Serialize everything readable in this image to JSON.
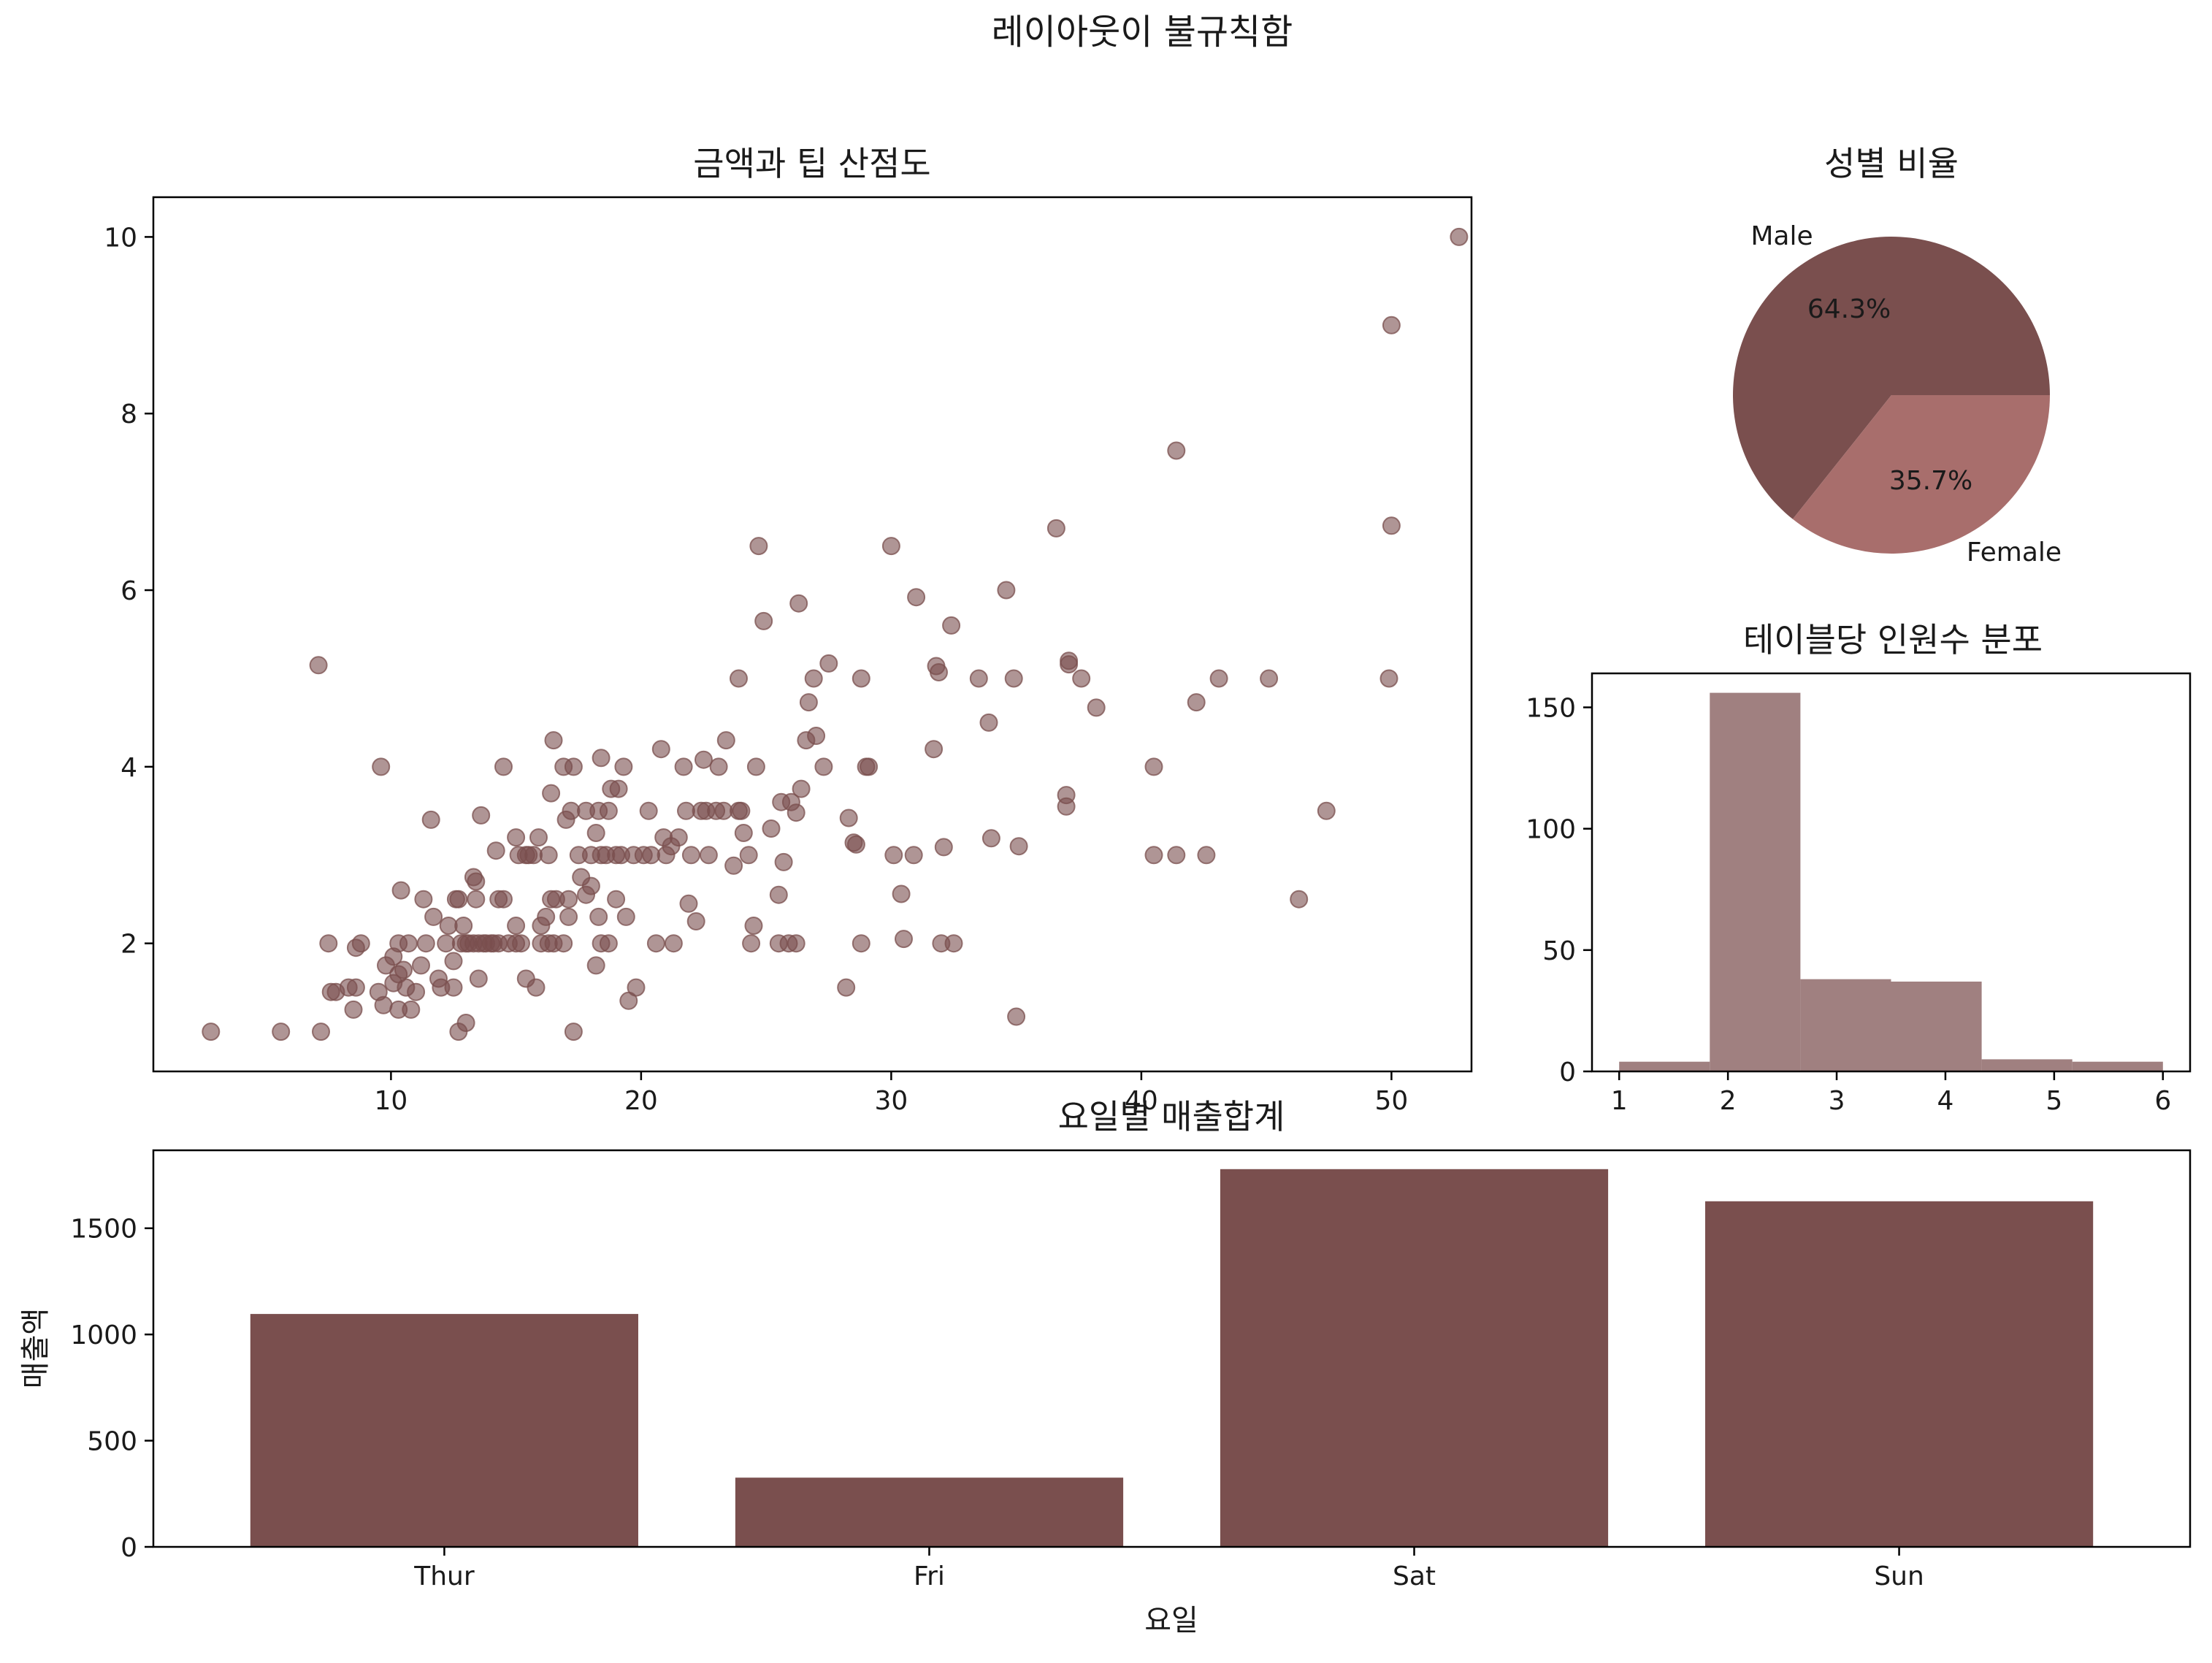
{
  "suptitle": "레이아웃이 불규칙함",
  "colors": {
    "dark": "#7a4f4e",
    "pink": "#a86e6c",
    "hist": "#a08080",
    "dot": "#7a4f4e"
  },
  "chart_data": [
    {
      "id": "scatter",
      "type": "scatter",
      "title": "금액과 팁 산점도",
      "xlabel": "",
      "ylabel": "",
      "xlim": [
        0.5,
        53.2
      ],
      "ylim": [
        0.55,
        10.45
      ],
      "xticks": [
        10,
        20,
        30,
        40,
        50
      ],
      "yticks": [
        2,
        4,
        6,
        8,
        10
      ],
      "points": [
        [
          2.8,
          1.0
        ],
        [
          5.6,
          1.0
        ],
        [
          7.2,
          1.0
        ],
        [
          7.1,
          5.15
        ],
        [
          7.5,
          2.0
        ],
        [
          7.6,
          1.45
        ],
        [
          7.8,
          1.45
        ],
        [
          8.3,
          1.5
        ],
        [
          8.5,
          1.25
        ],
        [
          8.6,
          1.95
        ],
        [
          8.6,
          1.5
        ],
        [
          8.8,
          2.0
        ],
        [
          9.5,
          1.45
        ],
        [
          9.6,
          4.0
        ],
        [
          9.7,
          1.3
        ],
        [
          9.8,
          1.75
        ],
        [
          10.1,
          1.55
        ],
        [
          10.1,
          1.85
        ],
        [
          10.3,
          2.0
        ],
        [
          10.3,
          1.25
        ],
        [
          10.3,
          1.65
        ],
        [
          10.4,
          2.6
        ],
        [
          10.5,
          1.7
        ],
        [
          10.6,
          1.5
        ],
        [
          10.7,
          2.0
        ],
        [
          10.8,
          1.25
        ],
        [
          11.0,
          1.45
        ],
        [
          11.2,
          1.75
        ],
        [
          11.3,
          2.5
        ],
        [
          11.4,
          2.0
        ],
        [
          11.6,
          3.4
        ],
        [
          11.7,
          2.3
        ],
        [
          11.9,
          1.6
        ],
        [
          12.0,
          1.5
        ],
        [
          12.2,
          2.0
        ],
        [
          12.3,
          2.2
        ],
        [
          12.5,
          1.5
        ],
        [
          12.5,
          1.8
        ],
        [
          12.6,
          2.5
        ],
        [
          12.7,
          1.0
        ],
        [
          12.7,
          2.5
        ],
        [
          12.8,
          2.0
        ],
        [
          12.9,
          2.2
        ],
        [
          13.0,
          1.1
        ],
        [
          13.0,
          2.0
        ],
        [
          13.1,
          2.0
        ],
        [
          13.3,
          2.75
        ],
        [
          13.3,
          2.0
        ],
        [
          13.4,
          2.5
        ],
        [
          13.4,
          2.7
        ],
        [
          13.5,
          2.0
        ],
        [
          13.5,
          1.6
        ],
        [
          13.6,
          3.45
        ],
        [
          13.7,
          2.0
        ],
        [
          13.8,
          2.0
        ],
        [
          14.0,
          2.0
        ],
        [
          14.1,
          2.0
        ],
        [
          14.2,
          3.05
        ],
        [
          14.3,
          2.0
        ],
        [
          14.3,
          2.5
        ],
        [
          14.5,
          4.0
        ],
        [
          14.5,
          2.5
        ],
        [
          14.7,
          2.0
        ],
        [
          15.0,
          2.0
        ],
        [
          15.0,
          3.2
        ],
        [
          15.0,
          2.2
        ],
        [
          15.1,
          3.0
        ],
        [
          15.2,
          2.0
        ],
        [
          15.4,
          3.0
        ],
        [
          15.4,
          1.6
        ],
        [
          15.5,
          3.0
        ],
        [
          15.7,
          3.0
        ],
        [
          15.8,
          1.5
        ],
        [
          15.9,
          3.2
        ],
        [
          16.0,
          2.2
        ],
        [
          16.0,
          2.0
        ],
        [
          16.2,
          2.3
        ],
        [
          16.3,
          2.0
        ],
        [
          16.3,
          3.0
        ],
        [
          16.4,
          2.5
        ],
        [
          16.4,
          3.7
        ],
        [
          16.5,
          4.3
        ],
        [
          16.5,
          2.0
        ],
        [
          16.6,
          2.5
        ],
        [
          16.9,
          2.0
        ],
        [
          16.9,
          4.0
        ],
        [
          17.0,
          3.4
        ],
        [
          17.1,
          2.5
        ],
        [
          17.1,
          2.3
        ],
        [
          17.2,
          3.5
        ],
        [
          17.3,
          4.0
        ],
        [
          17.3,
          1.0
        ],
        [
          17.5,
          3.0
        ],
        [
          17.6,
          2.75
        ],
        [
          17.8,
          3.5
        ],
        [
          17.8,
          2.55
        ],
        [
          18.0,
          3.0
        ],
        [
          18.0,
          2.65
        ],
        [
          18.2,
          3.25
        ],
        [
          18.2,
          1.75
        ],
        [
          18.3,
          2.3
        ],
        [
          18.3,
          3.5
        ],
        [
          18.4,
          2.0
        ],
        [
          18.4,
          3.0
        ],
        [
          18.4,
          4.1
        ],
        [
          18.6,
          3.0
        ],
        [
          18.7,
          2.0
        ],
        [
          18.7,
          3.5
        ],
        [
          18.8,
          3.75
        ],
        [
          19.0,
          3.0
        ],
        [
          19.0,
          2.5
        ],
        [
          19.1,
          3.75
        ],
        [
          19.2,
          3.0
        ],
        [
          19.3,
          4.0
        ],
        [
          19.4,
          2.3
        ],
        [
          19.5,
          1.35
        ],
        [
          19.7,
          3.0
        ],
        [
          19.8,
          1.5
        ],
        [
          20.1,
          3.0
        ],
        [
          20.3,
          3.5
        ],
        [
          20.4,
          3.0
        ],
        [
          20.6,
          2.0
        ],
        [
          20.8,
          4.2
        ],
        [
          20.9,
          3.2
        ],
        [
          21.0,
          3.0
        ],
        [
          21.2,
          3.1
        ],
        [
          21.3,
          2.0
        ],
        [
          21.5,
          3.2
        ],
        [
          21.7,
          4.0
        ],
        [
          21.8,
          3.5
        ],
        [
          21.9,
          2.45
        ],
        [
          22.0,
          3.0
        ],
        [
          22.2,
          2.25
        ],
        [
          22.4,
          3.5
        ],
        [
          22.5,
          4.08
        ],
        [
          22.6,
          3.5
        ],
        [
          22.7,
          3.0
        ],
        [
          23.0,
          3.5
        ],
        [
          23.1,
          4.0
        ],
        [
          23.3,
          3.5
        ],
        [
          23.4,
          4.3
        ],
        [
          23.7,
          2.88
        ],
        [
          23.9,
          5.0
        ],
        [
          23.9,
          3.5
        ],
        [
          24.0,
          3.5
        ],
        [
          24.1,
          3.25
        ],
        [
          24.3,
          3.0
        ],
        [
          24.4,
          2.0
        ],
        [
          24.5,
          2.2
        ],
        [
          24.6,
          4.0
        ],
        [
          24.7,
          6.5
        ],
        [
          24.9,
          5.65
        ],
        [
          25.2,
          3.3
        ],
        [
          25.5,
          2.55
        ],
        [
          25.5,
          2.0
        ],
        [
          25.6,
          3.6
        ],
        [
          25.7,
          2.92
        ],
        [
          25.9,
          2.0
        ],
        [
          26.0,
          3.6
        ],
        [
          26.2,
          3.48
        ],
        [
          26.2,
          2.0
        ],
        [
          26.3,
          5.85
        ],
        [
          26.4,
          3.75
        ],
        [
          26.6,
          4.3
        ],
        [
          26.7,
          4.73
        ],
        [
          26.9,
          5.0
        ],
        [
          27.0,
          4.35
        ],
        [
          27.3,
          4.0
        ],
        [
          27.5,
          5.17
        ],
        [
          28.2,
          1.5
        ],
        [
          28.3,
          3.42
        ],
        [
          28.5,
          3.14
        ],
        [
          28.6,
          3.12
        ],
        [
          28.8,
          5.0
        ],
        [
          28.8,
          2.0
        ],
        [
          29.0,
          4.0
        ],
        [
          29.1,
          4.0
        ],
        [
          30.0,
          6.5
        ],
        [
          30.1,
          3.0
        ],
        [
          30.4,
          2.56
        ],
        [
          30.5,
          2.05
        ],
        [
          30.9,
          3.0
        ],
        [
          31.0,
          5.92
        ],
        [
          31.7,
          4.2
        ],
        [
          31.8,
          5.14
        ],
        [
          31.9,
          5.07
        ],
        [
          32.0,
          2.0
        ],
        [
          32.1,
          3.09
        ],
        [
          32.4,
          5.6
        ],
        [
          32.5,
          2.0
        ],
        [
          33.5,
          5.0
        ],
        [
          33.9,
          4.5
        ],
        [
          34.0,
          3.19
        ],
        [
          34.6,
          6.0
        ],
        [
          34.9,
          5.0
        ],
        [
          35.0,
          1.17
        ],
        [
          35.1,
          3.1
        ],
        [
          36.6,
          6.7
        ],
        [
          37.0,
          3.68
        ],
        [
          37.0,
          3.55
        ],
        [
          37.1,
          5.2
        ],
        [
          37.1,
          5.16
        ],
        [
          37.6,
          5.0
        ],
        [
          38.2,
          4.67
        ],
        [
          40.5,
          3.0
        ],
        [
          40.5,
          4.0
        ],
        [
          41.4,
          7.58
        ],
        [
          41.4,
          3.0
        ],
        [
          42.2,
          4.73
        ],
        [
          42.6,
          3.0
        ],
        [
          43.1,
          5.0
        ],
        [
          45.1,
          5.0
        ],
        [
          46.3,
          2.5
        ],
        [
          47.4,
          3.5
        ],
        [
          49.9,
          5.0
        ],
        [
          50.0,
          6.73
        ],
        [
          50.0,
          9.0
        ],
        [
          52.7,
          10.0
        ]
      ]
    },
    {
      "id": "pie",
      "type": "pie",
      "title": "성별 비율",
      "labels": [
        "Male",
        "Female"
      ],
      "values": [
        64.3,
        35.7
      ],
      "pct_labels": [
        "64.3%",
        "35.7%"
      ],
      "colors": [
        "#7a4f4e",
        "#a86e6c"
      ]
    },
    {
      "id": "hist",
      "type": "bar",
      "title": "테이블당 인원수 분포",
      "xlabel": "",
      "ylabel": "",
      "xlim": [
        0.75,
        6.25
      ],
      "ylim": [
        0,
        164
      ],
      "xticks": [
        1,
        2,
        3,
        4,
        5,
        6
      ],
      "yticks": [
        0,
        50,
        100,
        150
      ],
      "bin_edges": [
        1.0,
        1.8333,
        2.6667,
        3.5,
        4.3333,
        5.1667,
        6.0
      ],
      "values": [
        4,
        156,
        38,
        37,
        5,
        4
      ]
    },
    {
      "id": "bar",
      "type": "bar",
      "title": "요일별 매출합계",
      "xlabel": "요일",
      "ylabel": "매출액",
      "categories": [
        "Thur",
        "Fri",
        "Sat",
        "Sun"
      ],
      "values": [
        1096.33,
        325.88,
        1778.4,
        1627.16
      ],
      "ylim": [
        0,
        1867
      ],
      "yticks": [
        0,
        500,
        1000,
        1500
      ]
    }
  ]
}
